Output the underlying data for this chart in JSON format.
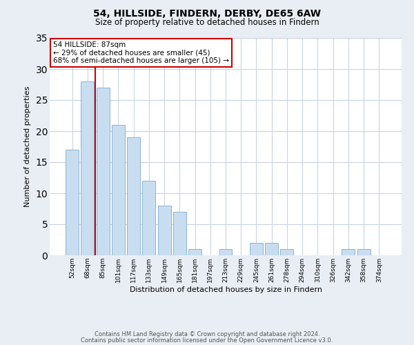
{
  "title": "54, HILLSIDE, FINDERN, DERBY, DE65 6AW",
  "subtitle": "Size of property relative to detached houses in Findern",
  "xlabel": "Distribution of detached houses by size in Findern",
  "ylabel": "Number of detached properties",
  "bar_labels": [
    "52sqm",
    "68sqm",
    "85sqm",
    "101sqm",
    "117sqm",
    "133sqm",
    "149sqm",
    "165sqm",
    "181sqm",
    "197sqm",
    "213sqm",
    "229sqm",
    "245sqm",
    "261sqm",
    "278sqm",
    "294sqm",
    "310sqm",
    "326sqm",
    "342sqm",
    "358sqm",
    "374sqm"
  ],
  "bar_values": [
    17,
    28,
    27,
    21,
    19,
    12,
    8,
    7,
    1,
    0,
    1,
    0,
    2,
    2,
    1,
    0,
    0,
    0,
    1,
    1,
    0
  ],
  "bar_color": "#c8ddf0",
  "bar_edge_color": "#8ab4d4",
  "vline_color": "#cc0000",
  "ylim": [
    0,
    35
  ],
  "yticks": [
    0,
    5,
    10,
    15,
    20,
    25,
    30,
    35
  ],
  "annotation_title": "54 HILLSIDE: 87sqm",
  "annotation_line1": "← 29% of detached houses are smaller (45)",
  "annotation_line2": "68% of semi-detached houses are larger (105) →",
  "annotation_box_color": "#ffffff",
  "annotation_box_edge": "#cc0000",
  "footer1": "Contains HM Land Registry data © Crown copyright and database right 2024.",
  "footer2": "Contains public sector information licensed under the Open Government Licence v3.0.",
  "background_color": "#e8eef4",
  "plot_bg_color": "#ffffff",
  "grid_color": "#c8d4e0"
}
